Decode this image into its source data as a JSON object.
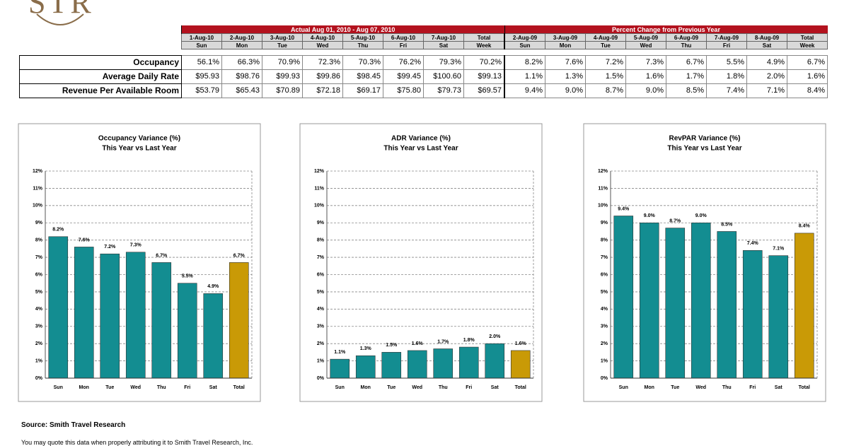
{
  "logo": "STR",
  "table": {
    "group_headers": [
      "Actual Aug 01, 2010 - Aug 07, 2010",
      "Percent Change from Previous Year"
    ],
    "dates": [
      "1-Aug-10",
      "2-Aug-10",
      "3-Aug-10",
      "4-Aug-10",
      "5-Aug-10",
      "6-Aug-10",
      "7-Aug-10",
      "Total",
      "2-Aug-09",
      "3-Aug-09",
      "4-Aug-09",
      "5-Aug-09",
      "6-Aug-09",
      "7-Aug-09",
      "8-Aug-09",
      "Total"
    ],
    "days": [
      "Sun",
      "Mon",
      "Tue",
      "Wed",
      "Thu",
      "Fri",
      "Sat",
      "Week",
      "Sun",
      "Mon",
      "Tue",
      "Wed",
      "Thu",
      "Fri",
      "Sat",
      "Week"
    ],
    "rows": [
      {
        "label": "Occupancy",
        "cells": [
          "56.1%",
          "66.3%",
          "70.9%",
          "72.3%",
          "70.3%",
          "76.2%",
          "79.3%",
          "70.2%",
          "8.2%",
          "7.6%",
          "7.2%",
          "7.3%",
          "6.7%",
          "5.5%",
          "4.9%",
          "6.7%"
        ]
      },
      {
        "label": "Average Daily Rate",
        "cells": [
          "$95.93",
          "$98.76",
          "$99.93",
          "$99.86",
          "$98.45",
          "$99.45",
          "$100.60",
          "$99.13",
          "1.1%",
          "1.3%",
          "1.5%",
          "1.6%",
          "1.7%",
          "1.8%",
          "2.0%",
          "1.6%"
        ]
      },
      {
        "label": "Revenue Per Available Room",
        "cells": [
          "$53.79",
          "$65.43",
          "$70.89",
          "$72.18",
          "$69.17",
          "$75.80",
          "$79.73",
          "$69.57",
          "9.4%",
          "9.0%",
          "8.7%",
          "9.0%",
          "8.5%",
          "7.4%",
          "7.1%",
          "8.4%"
        ]
      }
    ]
  },
  "chart_data": [
    {
      "type": "bar",
      "title": "Occupancy Variance (%)",
      "subtitle": "This Year vs Last Year",
      "categories": [
        "Sun",
        "Mon",
        "Tue",
        "Wed",
        "Thu",
        "Fri",
        "Sat",
        "Total"
      ],
      "values": [
        8.2,
        7.6,
        7.2,
        7.3,
        6.7,
        5.5,
        4.9,
        6.7
      ],
      "value_labels": [
        "8.2%",
        "7.6%",
        "7.2%",
        "7.3%",
        "6.7%",
        "5.5%",
        "4.9%",
        "6.7%"
      ],
      "colors": [
        "#138d91",
        "#138d91",
        "#138d91",
        "#138d91",
        "#138d91",
        "#138d91",
        "#138d91",
        "#c99a06"
      ],
      "ylim": [
        0,
        12
      ],
      "yticks": [
        {
          "value": 0,
          "label": "0%"
        },
        {
          "value": 1,
          "label": "1%"
        },
        {
          "value": 2,
          "label": "2%"
        },
        {
          "value": 3,
          "label": "3%"
        },
        {
          "value": 4,
          "label": "4%"
        },
        {
          "value": 5,
          "label": "5%"
        },
        {
          "value": 6,
          "label": "6%"
        },
        {
          "value": 7,
          "label": "7%"
        },
        {
          "value": 8,
          "label": "8%"
        },
        {
          "value": 9,
          "label": "9%"
        },
        {
          "value": 10,
          "label": "10%"
        },
        {
          "value": 11,
          "label": "11%"
        },
        {
          "value": 12,
          "label": "12%"
        }
      ],
      "grid": true
    },
    {
      "type": "bar",
      "title": "ADR Variance (%)",
      "subtitle": "This Year vs Last Year",
      "categories": [
        "Sun",
        "Mon",
        "Tue",
        "Wed",
        "Thu",
        "Fri",
        "Sat",
        "Total"
      ],
      "values": [
        1.1,
        1.3,
        1.5,
        1.6,
        1.7,
        1.8,
        2.0,
        1.6
      ],
      "value_labels": [
        "1.1%",
        "1.3%",
        "1.5%",
        "1.6%",
        "1.7%",
        "1.8%",
        "2.0%",
        "1.6%"
      ],
      "colors": [
        "#138d91",
        "#138d91",
        "#138d91",
        "#138d91",
        "#138d91",
        "#138d91",
        "#138d91",
        "#c99a06"
      ],
      "ylim": [
        0,
        12
      ],
      "yticks": [
        {
          "value": 0,
          "label": "0%"
        },
        {
          "value": 1,
          "label": "1%"
        },
        {
          "value": 2,
          "label": "2%"
        },
        {
          "value": 3,
          "label": "3%"
        },
        {
          "value": 4,
          "label": "4%"
        },
        {
          "value": 5,
          "label": "5%"
        },
        {
          "value": 6,
          "label": "6%"
        },
        {
          "value": 7,
          "label": "7%"
        },
        {
          "value": 8,
          "label": "8%"
        },
        {
          "value": 9,
          "label": "9%"
        },
        {
          "value": 10,
          "label": "10%"
        },
        {
          "value": 11,
          "label": "11%"
        },
        {
          "value": 12,
          "label": "12%"
        }
      ],
      "grid": true
    },
    {
      "type": "bar",
      "title": "RevPAR Variance (%)",
      "subtitle": "This Year vs Last Year",
      "categories": [
        "Sun",
        "Mon",
        "Tue",
        "Wed",
        "Thu",
        "Fri",
        "Sat",
        "Total"
      ],
      "values": [
        9.4,
        9.0,
        8.7,
        9.0,
        8.5,
        7.4,
        7.1,
        8.4
      ],
      "value_labels": [
        "9.4%",
        "9.0%",
        "8.7%",
        "9.0%",
        "8.5%",
        "7.4%",
        "7.1%",
        "8.4%"
      ],
      "colors": [
        "#138d91",
        "#138d91",
        "#138d91",
        "#138d91",
        "#138d91",
        "#138d91",
        "#138d91",
        "#c99a06"
      ],
      "ylim": [
        0,
        12
      ],
      "yticks": [
        {
          "value": 0,
          "label": "0%"
        },
        {
          "value": 1,
          "label": "1%"
        },
        {
          "value": 2,
          "label": "2%"
        },
        {
          "value": 3,
          "label": "3%"
        },
        {
          "value": 4,
          "label": "4%"
        },
        {
          "value": 5,
          "label": "5%"
        },
        {
          "value": 6,
          "label": "6%"
        },
        {
          "value": 7,
          "label": "7%"
        },
        {
          "value": 8,
          "label": "8%"
        },
        {
          "value": 9,
          "label": "9%"
        },
        {
          "value": 10,
          "label": "10%"
        },
        {
          "value": 11,
          "label": "11%"
        },
        {
          "value": 12,
          "label": "12%"
        }
      ],
      "grid": true
    }
  ],
  "source": "Source: Smith Travel Research",
  "note": "You may quote this data when properly attributing it to Smith Travel Research, Inc."
}
